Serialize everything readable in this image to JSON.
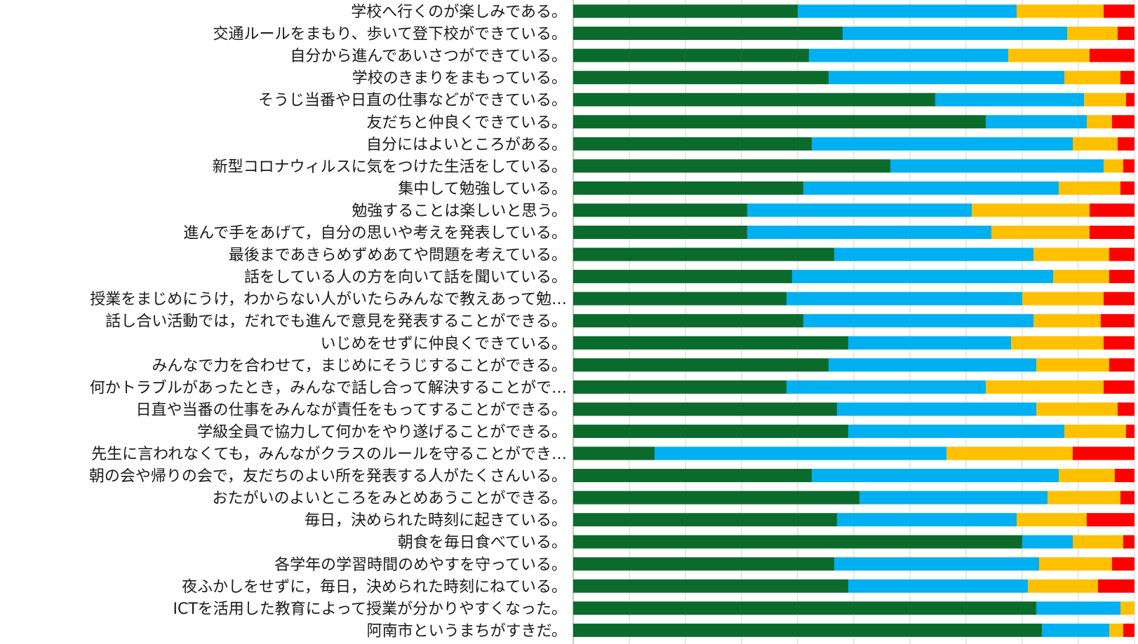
{
  "chart_data": {
    "type": "bar",
    "orientation": "horizontal",
    "stacked": "percent",
    "title": "",
    "xlabel": "",
    "ylabel": "",
    "xlim": [
      0,
      100
    ],
    "grid": "vertical",
    "legend": "none",
    "categories": [
      "学校へ行くのが楽しみである。",
      "交通ルールをまもり、歩いて登下校ができている。",
      "自分から進んであいさつができている。",
      "学校のきまりをまもっている。",
      "そうじ当番や日直の仕事などができている。",
      "友だちと仲良くできている。",
      "自分にはよいところがある。",
      "新型コロナウィルスに気をつけた生活をしている。",
      "集中して勉強している。",
      "勉強することは楽しいと思う。",
      "進んで手をあげて，自分の思いや考えを発表している。",
      "最後まであきらめずめあてや問題を考えている。",
      "話をしている人の方を向いて話を聞いている。",
      "授業をまじめにうけ，わからない人がいたらみんなで教えあって勉…",
      "話し合い活動では，だれでも進んで意見を発表することができる。",
      "いじめをせずに仲良くできている。",
      "みんなで力を合わせて，まじめにそうじすることができる。",
      "何かトラブルがあったとき，みんなで話し合って解決することがで…",
      "日直や当番の仕事をみんなが責任をもってすることができる。",
      "学級全員で協力して何かをやり遂げることができる。",
      "先生に言われなくても，みんながクラスのルールを守ることができ…",
      "朝の会や帰りの会で，友だちのよい所を発表する人がたくさんいる。",
      "おたがいのよいところをみとめあうことができる。",
      "毎日，決められた時刻に起きている。",
      "朝食を毎日食べている。",
      "各学年の学習時間のめやすを守っている。",
      "夜ふかしをせずに，毎日，決められた時刻にねている。",
      "ICTを活用した教育によって授業が分かりやすくなった。",
      "阿南市というまちがすきだ。"
    ],
    "series": [
      {
        "color": "#0b6b2c",
        "values": [
          40,
          48,
          42,
          45.5,
          64.5,
          73.5,
          42.5,
          56.5,
          41,
          31,
          31,
          46.5,
          39,
          38,
          41,
          49,
          45.5,
          38,
          47,
          49,
          14.5,
          42.5,
          51,
          47,
          80,
          46.5,
          49,
          82.5,
          83.5
        ]
      },
      {
        "color": "#00b0f0",
        "values": [
          39,
          40,
          35.5,
          42,
          26.5,
          18,
          46.5,
          38,
          45.5,
          40,
          43.5,
          35.5,
          46.5,
          42,
          41,
          29,
          37,
          35.5,
          35.5,
          38.5,
          52,
          44,
          33.5,
          32,
          9,
          36.5,
          32,
          15,
          12
        ]
      },
      {
        "color": "#ffc000",
        "values": [
          15.5,
          9,
          14.5,
          10,
          7.5,
          4.5,
          8,
          3.5,
          11,
          21,
          17.5,
          13.5,
          10,
          14.5,
          12,
          16.5,
          13,
          21,
          14.5,
          11,
          22.5,
          10,
          13,
          12.5,
          9,
          13,
          12.5,
          2.5,
          2.5
        ]
      },
      {
        "color": "#ff0000",
        "values": [
          5.5,
          3,
          8,
          2.5,
          1.5,
          4,
          3,
          2,
          2.5,
          8,
          8,
          4.5,
          4.5,
          5.5,
          6,
          5.5,
          4.5,
          5.5,
          3,
          1.5,
          11,
          3.5,
          2.5,
          8.5,
          2,
          4,
          6.5,
          0,
          2
        ]
      }
    ]
  }
}
